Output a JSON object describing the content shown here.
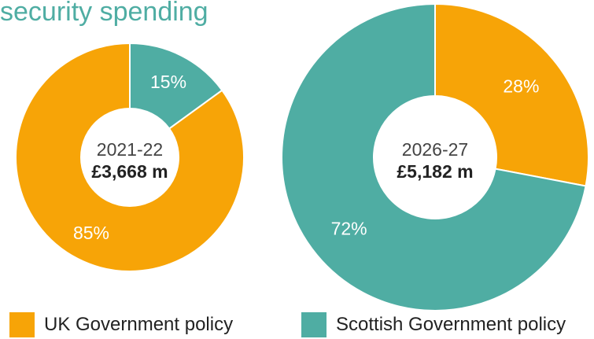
{
  "title": "security spending",
  "colors": {
    "uk": "#f7a407",
    "scottish": "#4fada3"
  },
  "chart_data": {
    "type": "pie",
    "title": "security spending",
    "series_names": [
      "UK Government policy",
      "Scottish Government policy"
    ],
    "charts": [
      {
        "year": "2021-22",
        "total": "£3,668 m",
        "slices": [
          {
            "name": "UK Government policy",
            "value": 85,
            "label": "85%"
          },
          {
            "name": "Scottish Government policy",
            "value": 15,
            "label": "15%"
          }
        ]
      },
      {
        "year": "2026-27",
        "total": "£5,182 m",
        "slices": [
          {
            "name": "UK Government policy",
            "value": 28,
            "label": "28%"
          },
          {
            "name": "Scottish Government policy",
            "value": 72,
            "label": "72%"
          }
        ]
      }
    ]
  },
  "legend": [
    {
      "label": "UK Government policy",
      "color": "#f7a407"
    },
    {
      "label": "Scottish Government policy",
      "color": "#4fada3"
    }
  ]
}
